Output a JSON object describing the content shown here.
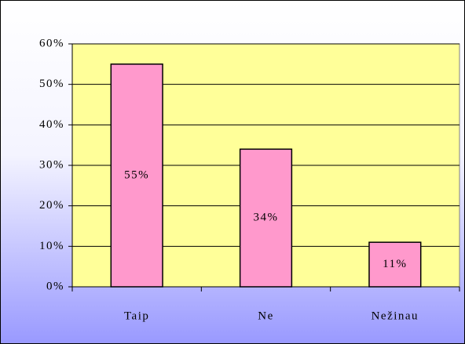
{
  "chart_data": {
    "type": "bar",
    "categories": [
      "Taip",
      "Ne",
      "Nežinau"
    ],
    "values": [
      55,
      34,
      11
    ],
    "value_labels": [
      "55%",
      "34%",
      "11%"
    ],
    "color": "#ff99cc",
    "ylim": [
      0,
      60
    ],
    "yticks": [
      {
        "value": 0,
        "label": "0%"
      },
      {
        "value": 10,
        "label": "10%"
      },
      {
        "value": 20,
        "label": "20%"
      },
      {
        "value": 30,
        "label": "30%"
      },
      {
        "value": 40,
        "label": "40%"
      },
      {
        "value": 50,
        "label": "50%"
      },
      {
        "value": 60,
        "label": "60%"
      }
    ],
    "grid": true
  }
}
